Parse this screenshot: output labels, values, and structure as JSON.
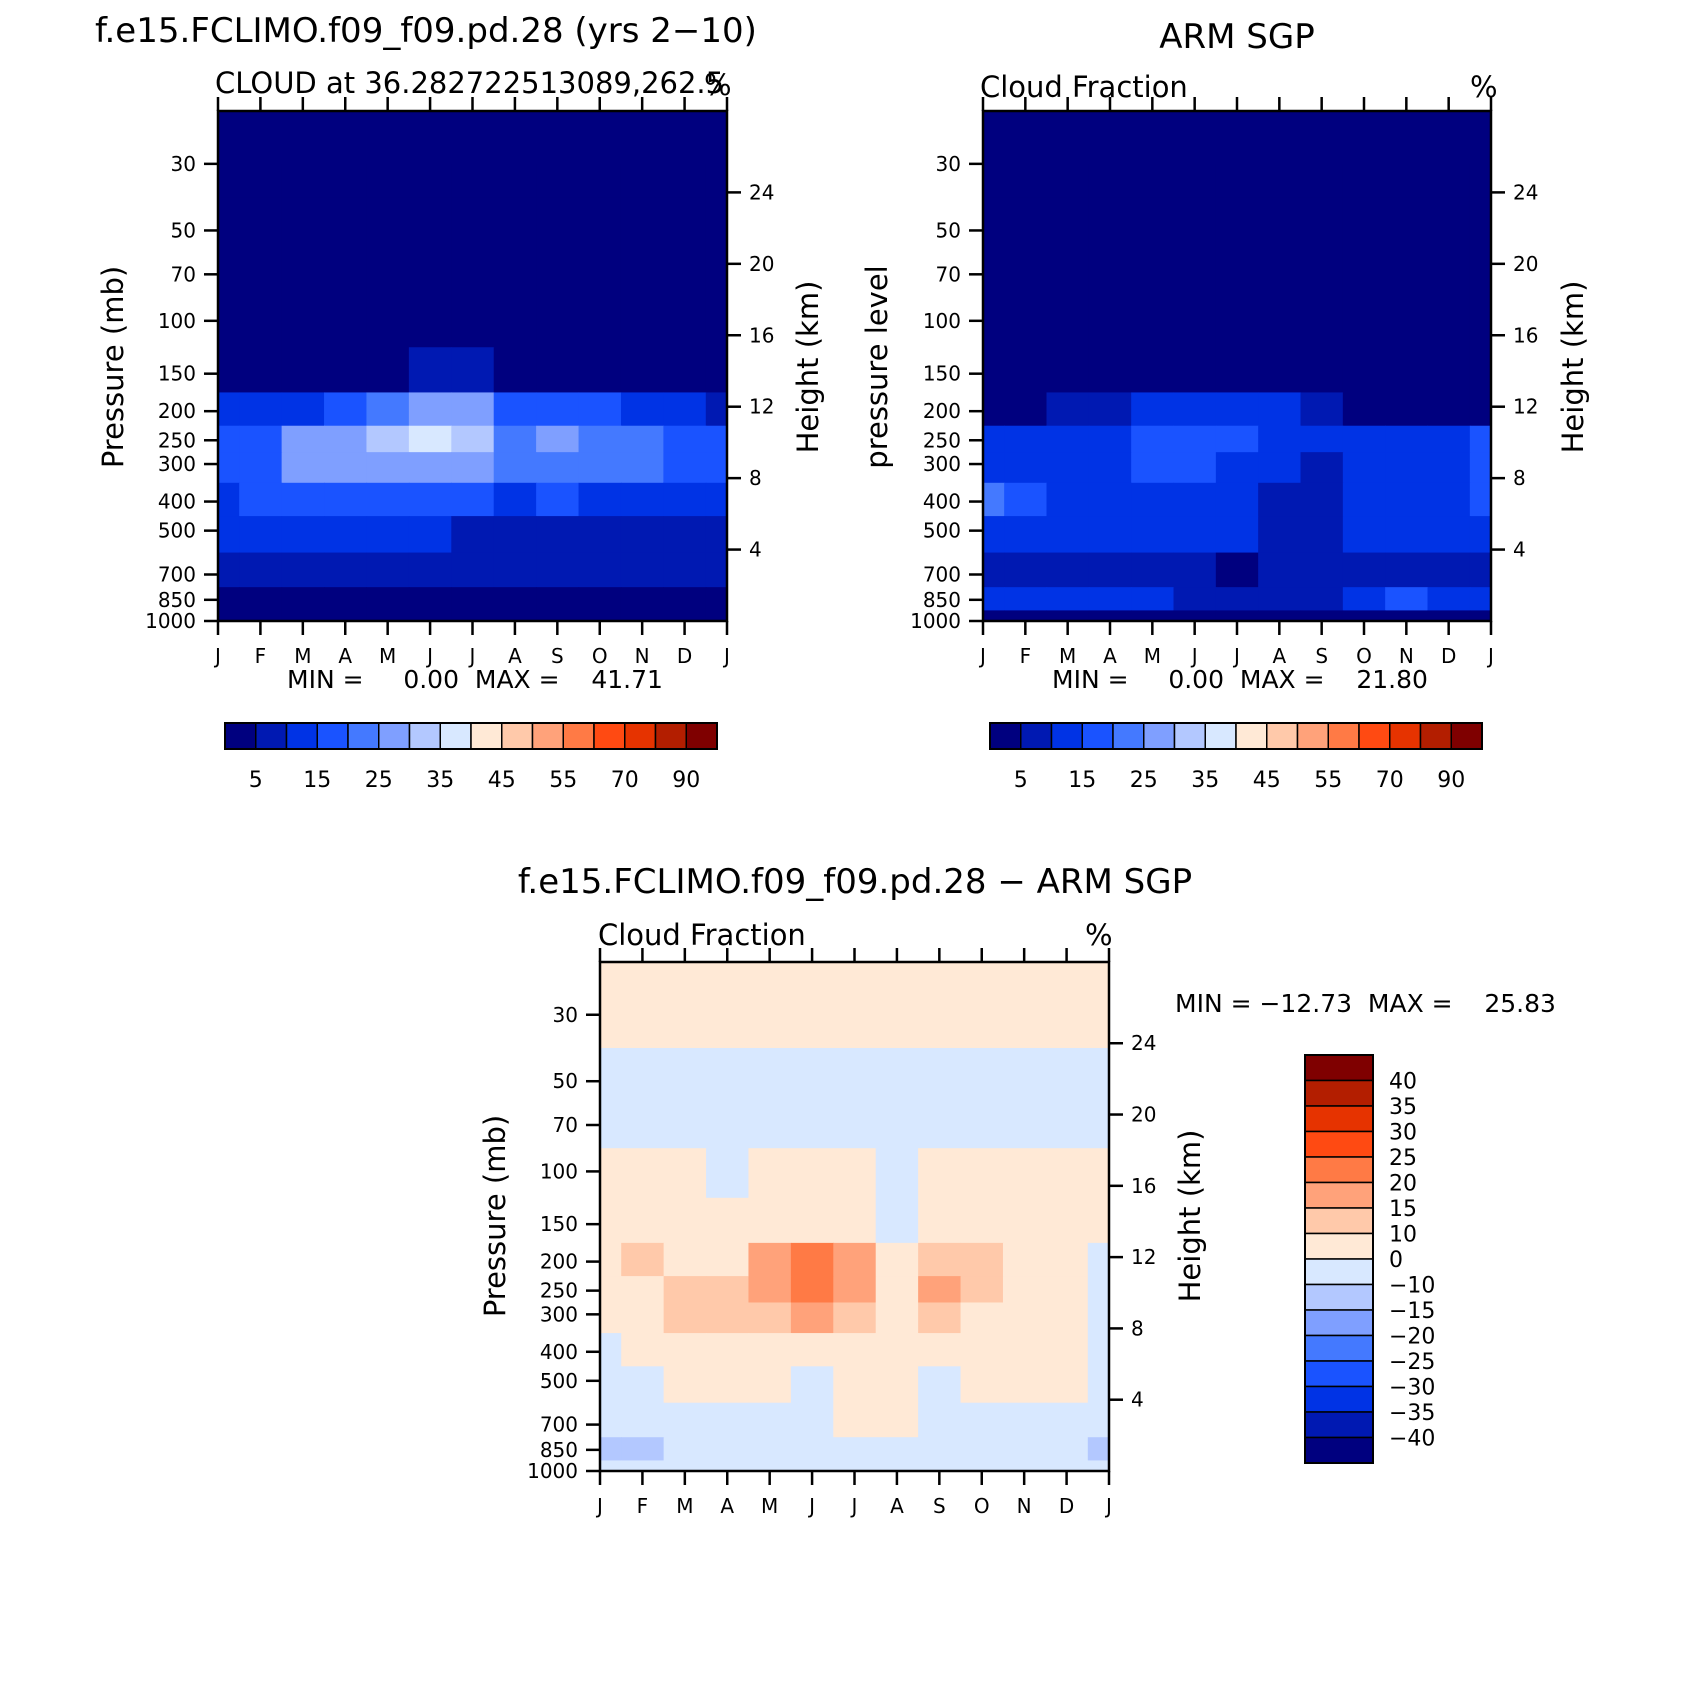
{
  "months": [
    "J",
    "F",
    "M",
    "A",
    "M",
    "J",
    "J",
    "A",
    "S",
    "O",
    "N",
    "D",
    "J"
  ],
  "pressure_ticks": [
    30,
    50,
    70,
    100,
    150,
    200,
    250,
    300,
    400,
    500,
    700,
    850,
    1000
  ],
  "height_ticks": [
    24,
    20,
    16,
    12,
    8,
    4
  ],
  "units": "%",
  "panels": {
    "model": {
      "title": "f.e15.FCLIMO.f09_f09.pd.28 (yrs 2−10)",
      "subtitle": "CLOUD at 36.282722513089,262.5",
      "units": "%",
      "ylabel_left": "Pressure (mb)",
      "ylabel_right": "Height (km)",
      "stats": "MIN =     0.00  MAX =    41.71"
    },
    "obs": {
      "title": "ARM SGP",
      "subtitle": "Cloud Fraction",
      "units": "%",
      "ylabel_left": "pressure level",
      "ylabel_right": "Height (km)",
      "stats": "MIN =     0.00  MAX =    21.80"
    },
    "diff": {
      "title": "f.e15.FCLIMO.f09_f09.pd.28 − ARM SGP",
      "subtitle": "Cloud Fraction",
      "units": "%",
      "ylabel_left": "Pressure (mb)",
      "ylabel_right": "Height (km)",
      "stats": "MIN = −12.73  MAX =    25.83"
    }
  },
  "colorbar_main": {
    "labels": [
      "5",
      "15",
      "25",
      "35",
      "45",
      "55",
      "70",
      "90"
    ],
    "colors": [
      "#00007f",
      "#0019b2",
      "#0033e5",
      "#1a53ff",
      "#4479ff",
      "#7f9fff",
      "#b3c8ff",
      "#d8e8ff",
      "#ffe9d6",
      "#ffc9aa",
      "#ffa27a",
      "#ff7a45",
      "#ff4a12",
      "#e63300",
      "#b31e00",
      "#7f0000"
    ]
  },
  "colorbar_diff": {
    "labels": [
      "40",
      "35",
      "30",
      "25",
      "20",
      "15",
      "10",
      "0",
      "−10",
      "−15",
      "−20",
      "−25",
      "−30",
      "−35",
      "−40"
    ],
    "colors": [
      "#7f0000",
      "#b31e00",
      "#e63300",
      "#ff4a12",
      "#ff7a45",
      "#ffa27a",
      "#ffc9aa",
      "#ffe9d6",
      "#d8e8ff",
      "#b3c8ff",
      "#7f9fff",
      "#4479ff",
      "#1a53ff",
      "#0033e5",
      "#0019b2",
      "#00007f"
    ]
  },
  "chart_data": [
    {
      "type": "heatmap",
      "title": "f.e15.FCLIMO.f09_f09.pd.28 (yrs 2−10)",
      "subtitle": "CLOUD at 36.282722513089,262.5",
      "x": [
        "J",
        "F",
        "M",
        "A",
        "M",
        "J",
        "J",
        "A",
        "S",
        "O",
        "N",
        "D",
        "J"
      ],
      "y": [
        30,
        50,
        70,
        100,
        150,
        200,
        250,
        300,
        400,
        500,
        700,
        850,
        1000
      ],
      "xlabel": "",
      "ylabel": "Pressure (mb)",
      "ylabel_right": "Height (km)",
      "ylim": [
        1000,
        20
      ],
      "ylog": true,
      "min": 0.0,
      "max": 41.71,
      "levels": [
        5,
        10,
        15,
        20,
        25,
        30,
        35,
        40,
        45,
        50,
        55,
        60,
        70,
        80,
        90
      ],
      "values": [
        [
          0,
          0,
          0,
          0,
          0,
          0,
          0,
          0,
          0,
          0,
          0,
          0,
          0
        ],
        [
          0,
          0,
          0,
          0,
          0,
          0,
          0,
          0,
          0,
          0,
          0,
          0,
          0
        ],
        [
          0,
          0,
          0,
          0,
          0,
          0,
          0,
          0,
          0,
          0,
          0,
          0,
          0
        ],
        [
          0,
          0,
          0,
          0,
          0,
          0,
          0,
          0,
          0,
          0,
          0,
          0,
          0
        ],
        [
          3,
          2,
          2,
          3,
          4,
          6,
          6,
          3,
          3,
          3,
          3,
          3,
          3
        ],
        [
          10,
          13,
          14,
          15,
          24,
          29,
          28,
          18,
          17,
          16,
          13,
          11,
          9
        ],
        [
          15,
          19,
          25,
          26,
          32,
          37,
          30,
          22,
          25,
          24,
          22,
          17,
          15
        ],
        [
          15,
          19,
          25,
          26,
          27,
          29,
          25,
          20,
          24,
          23,
          20,
          17,
          15
        ],
        [
          13,
          15,
          19,
          18,
          17,
          16,
          15,
          14,
          15,
          14,
          14,
          14,
          13
        ],
        [
          12,
          11,
          12,
          12,
          11,
          10,
          9,
          9,
          9,
          9,
          9,
          9,
          9
        ],
        [
          7,
          7,
          7,
          7,
          6,
          6,
          5,
          5,
          5,
          5,
          5,
          5,
          5
        ],
        [
          4,
          4,
          4,
          4,
          4,
          4,
          3,
          3,
          3,
          3,
          4,
          4,
          4
        ],
        [
          2,
          2,
          2,
          2,
          2,
          2,
          2,
          2,
          2,
          2,
          2,
          2,
          2
        ]
      ]
    },
    {
      "type": "heatmap",
      "title": "ARM SGP",
      "subtitle": "Cloud Fraction",
      "x": [
        "J",
        "F",
        "M",
        "A",
        "M",
        "J",
        "J",
        "A",
        "S",
        "O",
        "N",
        "D",
        "J"
      ],
      "y": [
        30,
        50,
        70,
        100,
        150,
        200,
        250,
        300,
        400,
        500,
        700,
        850,
        1000
      ],
      "xlabel": "",
      "ylabel": "pressure level",
      "ylabel_right": "Height (km)",
      "ylim": [
        1000,
        20
      ],
      "ylog": true,
      "min": 0.0,
      "max": 21.8,
      "levels": [
        5,
        10,
        15,
        20,
        25,
        30,
        35,
        40,
        45,
        50,
        55,
        60,
        70,
        80,
        90
      ],
      "values": [
        [
          0,
          0,
          0,
          0,
          0,
          0,
          0,
          0,
          0,
          0,
          0,
          0,
          0
        ],
        [
          0,
          0,
          0,
          0,
          0,
          0,
          0,
          0,
          0,
          0,
          0,
          0,
          0
        ],
        [
          0,
          0,
          0,
          0,
          0,
          0,
          0,
          0,
          0,
          0,
          0,
          0,
          0
        ],
        [
          0,
          0,
          0,
          0,
          0,
          0,
          0,
          0,
          0,
          0,
          0,
          0,
          0
        ],
        [
          2,
          2,
          2,
          2,
          2,
          2,
          2,
          2,
          2,
          2,
          2,
          2,
          2
        ],
        [
          4,
          4,
          5,
          6,
          10,
          12,
          13,
          12,
          5,
          4,
          4,
          4,
          4
        ],
        [
          12,
          11,
          12,
          13,
          16,
          17,
          16,
          14,
          11,
          13,
          13,
          14,
          15
        ],
        [
          14,
          13,
          13,
          14,
          16,
          16,
          12,
          10,
          9,
          12,
          13,
          14,
          16
        ],
        [
          20,
          16,
          13,
          12,
          12,
          11,
          10,
          9,
          9,
          13,
          13,
          13,
          17
        ],
        [
          14,
          12,
          11,
          11,
          11,
          11,
          10,
          9,
          9,
          12,
          13,
          12,
          14
        ],
        [
          9,
          8,
          8,
          8,
          7,
          6,
          3,
          6,
          8,
          8,
          8,
          8,
          9
        ],
        [
          12,
          13,
          14,
          12,
          10,
          9,
          8,
          7,
          8,
          12,
          16,
          12,
          11
        ],
        [
          4,
          4,
          4,
          4,
          4,
          4,
          4,
          4,
          4,
          4,
          4,
          4,
          4
        ]
      ]
    },
    {
      "type": "heatmap",
      "title": "f.e15.FCLIMO.f09_f09.pd.28 − ARM SGP",
      "subtitle": "Cloud Fraction",
      "x": [
        "J",
        "F",
        "M",
        "A",
        "M",
        "J",
        "J",
        "A",
        "S",
        "O",
        "N",
        "D",
        "J"
      ],
      "y": [
        30,
        50,
        70,
        100,
        150,
        200,
        250,
        300,
        400,
        500,
        700,
        850,
        1000
      ],
      "xlabel": "",
      "ylabel": "Pressure (mb)",
      "ylabel_right": "Height (km)",
      "ylim": [
        1000,
        20
      ],
      "ylog": true,
      "min": -12.73,
      "max": 25.83,
      "levels": [
        -40,
        -35,
        -30,
        -25,
        -20,
        -15,
        -10,
        0,
        10,
        15,
        20,
        25,
        30,
        35,
        40
      ],
      "values": [
        [
          2,
          2,
          2,
          2,
          2,
          2,
          2,
          2,
          2,
          2,
          2,
          2,
          2
        ],
        [
          -2,
          -2,
          -2,
          -2,
          -2,
          -2,
          -2,
          -2,
          -2,
          -2,
          -2,
          -2,
          -2
        ],
        [
          -2,
          -2,
          -2,
          -2,
          -2,
          -2,
          -2,
          -2,
          -2,
          -2,
          -2,
          -2,
          -2
        ],
        [
          2,
          2,
          2,
          -2,
          2,
          2,
          2,
          -2,
          2,
          2,
          2,
          2,
          2
        ],
        [
          2,
          2,
          2,
          3,
          5,
          6,
          5,
          -1,
          3,
          2,
          2,
          2,
          2
        ],
        [
          5,
          10,
          9,
          8,
          16,
          24,
          18,
          5,
          12,
          10,
          4,
          2,
          -2
        ],
        [
          3,
          9,
          12,
          11,
          17,
          22,
          16,
          9,
          16,
          11,
          4,
          2,
          -2
        ],
        [
          1,
          5,
          10,
          11,
          14,
          16,
          12,
          6,
          13,
          9,
          4,
          2,
          -2
        ],
        [
          -2,
          2,
          5,
          6,
          5,
          6,
          5,
          5,
          5,
          4,
          3,
          3,
          -2
        ],
        [
          -2,
          -2,
          3,
          3,
          2,
          -2,
          2,
          2,
          -2,
          2,
          2,
          2,
          -2
        ],
        [
          -2,
          -2,
          -2,
          -2,
          -2,
          -2,
          2,
          2,
          -2,
          -2,
          -2,
          -2,
          -2
        ],
        [
          -12,
          -11,
          -3,
          -2,
          -2,
          -2,
          -2,
          -2,
          -2,
          -2,
          -10,
          -2,
          -12
        ],
        [
          -2,
          -2,
          -2,
          -2,
          -2,
          -2,
          -2,
          -2,
          -2,
          -2,
          -2,
          -2,
          -2
        ]
      ]
    }
  ]
}
